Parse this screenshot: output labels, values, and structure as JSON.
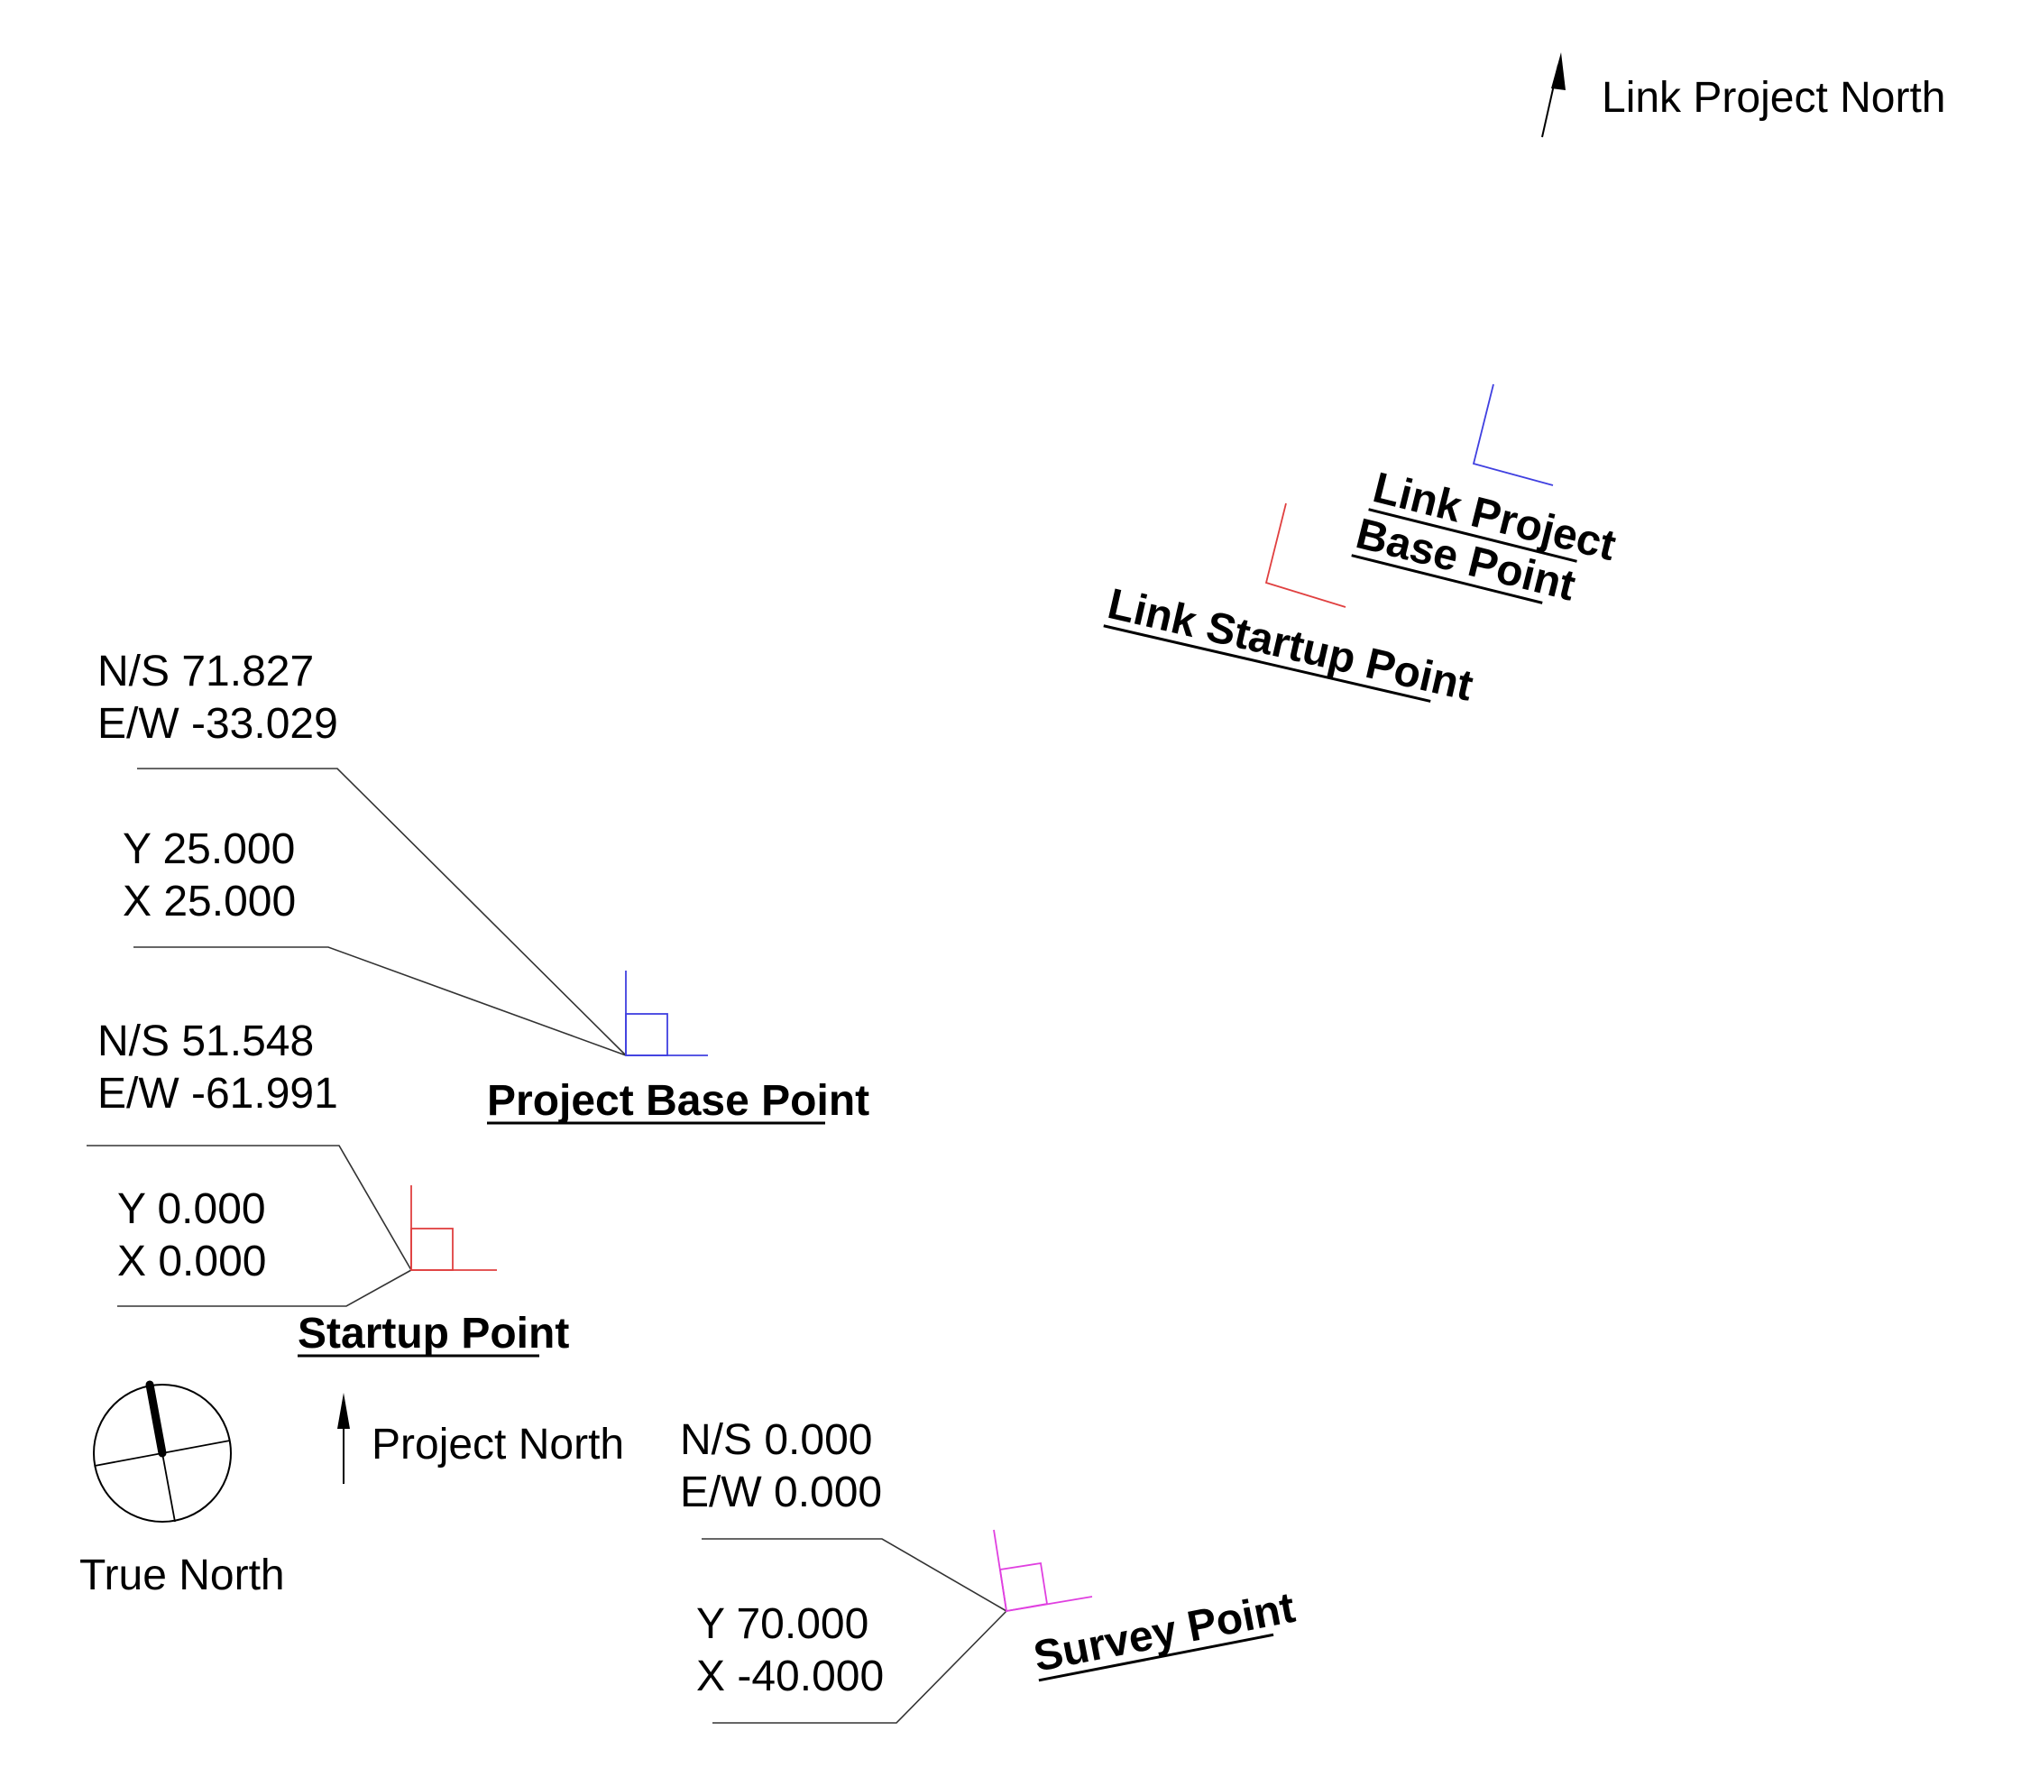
{
  "link_project_north": {
    "label": "Link Project North"
  },
  "link_project_base_point": {
    "label_line1": "Link Project",
    "label_line2": "Base Point",
    "color": "#4040e0"
  },
  "link_startup_point": {
    "label": "Link Startup Point",
    "color": "#e04040"
  },
  "project_base_point": {
    "label": "Project Base Point",
    "color": "#4040e0",
    "ns": "N/S 71.827",
    "ew": "E/W -33.029",
    "y": "Y 25.000",
    "x": "X 25.000"
  },
  "startup_point": {
    "label": "Startup Point",
    "color": "#e04040",
    "ns": "N/S 51.548",
    "ew": "E/W -61.991",
    "y": "Y 0.000",
    "x": "X 0.000"
  },
  "survey_point": {
    "label": "Survey Point",
    "color": "#e040e0",
    "ns": "N/S 0.000",
    "ew": "E/W 0.000",
    "y": "Y 70.000",
    "x": "X -40.000"
  },
  "true_north": {
    "label": "True North"
  },
  "project_north": {
    "label": "Project North"
  }
}
